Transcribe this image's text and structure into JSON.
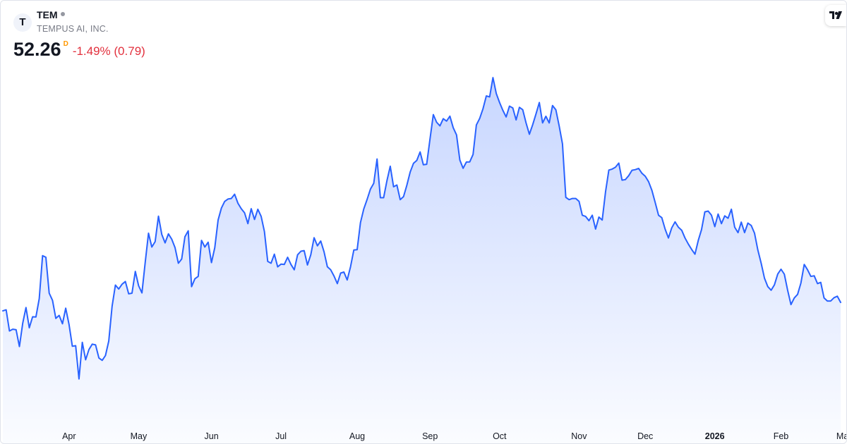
{
  "header": {
    "logo_text": "T",
    "ticker": "TEM",
    "company": "TEMPUS AI, INC.",
    "price": "52.26",
    "session_badge": "D",
    "change": "-1.49% (0.79)"
  },
  "colors": {
    "line": "#2962ff",
    "fill_top": "#2962ff",
    "change_negative": "#e2303d",
    "session_badge": "#ff9800"
  },
  "chart_data": {
    "type": "area",
    "title": "",
    "xlabel": "",
    "ylabel": "",
    "x_ticks": [
      {
        "label": "Apr",
        "index": 20,
        "bold": false
      },
      {
        "label": "May",
        "index": 41,
        "bold": false
      },
      {
        "label": "Jun",
        "index": 63,
        "bold": false
      },
      {
        "label": "Jul",
        "index": 84,
        "bold": false
      },
      {
        "label": "Aug",
        "index": 107,
        "bold": false
      },
      {
        "label": "Sep",
        "index": 129,
        "bold": false
      },
      {
        "label": "Oct",
        "index": 150,
        "bold": false
      },
      {
        "label": "Nov",
        "index": 174,
        "bold": false
      },
      {
        "label": "Dec",
        "index": 194,
        "bold": false
      },
      {
        "label": "2026",
        "index": 215,
        "bold": true
      },
      {
        "label": "Feb",
        "index": 235,
        "bold": false
      },
      {
        "label": "Mar",
        "index": 254,
        "bold": false
      }
    ],
    "ylim": [
      33,
      92
    ],
    "y_axis_visible": false,
    "grid": false,
    "values": [
      50.85,
      51.03,
      47.5,
      47.8,
      47.7,
      44.9,
      48.8,
      51.4,
      48.03,
      49.87,
      49.84,
      52.9,
      60.06,
      59.8,
      53.8,
      52.6,
      49.6,
      50.1,
      48.7,
      51.3,
      48.6,
      44.95,
      45.05,
      39.5,
      45.6,
      42.7,
      44.4,
      45.3,
      45.18,
      43.0,
      42.6,
      43.4,
      45.82,
      51.6,
      55.15,
      54.5,
      55.3,
      55.75,
      53.7,
      53.8,
      57.43,
      55.04,
      53.85,
      58.9,
      63.8,
      61.5,
      62.4,
      66.65,
      63.6,
      62.2,
      63.7,
      62.8,
      61.4,
      58.8,
      59.5,
      63.22,
      64.2,
      54.9,
      56.2,
      56.6,
      62.6,
      61.5,
      62.3,
      58.9,
      61.4,
      66.0,
      68.0,
      69.1,
      69.5,
      69.6,
      70.3,
      68.8,
      67.9,
      67.2,
      65.4,
      67.9,
      66.1,
      67.8,
      66.6,
      64.1,
      59.1,
      58.8,
      60.3,
      58.2,
      58.65,
      58.6,
      59.8,
      58.6,
      57.7,
      60.2,
      60.8,
      60.9,
      58.5,
      60.2,
      63.05,
      61.7,
      62.5,
      60.7,
      58.21,
      57.7,
      56.67,
      55.4,
      57.15,
      57.33,
      56.01,
      58.2,
      61.01,
      61.07,
      65.58,
      67.86,
      69.43,
      71.15,
      72.13,
      76.18,
      69.73,
      69.73,
      72.56,
      74.97,
      71.55,
      71.84,
      69.4,
      69.9,
      71.8,
      74.0,
      75.45,
      75.95,
      77.35,
      75.22,
      75.3,
      79.5,
      83.59,
      82.3,
      81.7,
      82.9,
      82.5,
      83.33,
      81.4,
      80.2,
      76.0,
      74.63,
      75.67,
      75.7,
      76.93,
      81.86,
      82.94,
      84.56,
      86.7,
      86.53,
      89.75,
      87.1,
      85.6,
      84.3,
      83.2,
      85.0,
      84.7,
      82.7,
      84.8,
      84.4,
      82.2,
      80.3,
      81.9,
      83.7,
      85.6,
      82.2,
      83.3,
      82.2,
      85.1,
      84.4,
      81.7,
      78.7,
      69.79,
      69.4,
      69.6,
      69.6,
      69.1,
      66.8,
      66.6,
      65.9,
      66.8,
      64.5,
      66.5,
      66.0,
      70.7,
      74.33,
      74.5,
      74.8,
      75.5,
      72.65,
      72.75,
      73.4,
      74.3,
      74.4,
      74.6,
      73.8,
      73.3,
      72.4,
      70.95,
      68.9,
      66.8,
      66.4,
      64.5,
      63.0,
      64.7,
      65.7,
      64.8,
      64.3,
      63.0,
      62.0,
      61.1,
      60.3,
      62.6,
      64.4,
      67.36,
      67.5,
      66.8,
      64.9,
      67.0,
      65.4,
      66.7,
      66.3,
      67.8,
      64.8,
      63.9,
      65.65,
      63.9,
      65.5,
      65.1,
      63.8,
      61.0,
      58.8,
      56.3,
      54.9,
      54.3,
      55.2,
      57.0,
      57.8,
      56.98,
      54.3,
      51.9,
      53.0,
      53.6,
      55.5,
      58.6,
      57.7,
      56.6,
      56.7,
      55.4,
      55.6,
      53.0,
      52.5,
      52.5,
      53.05,
      53.3,
      52.26
    ]
  }
}
